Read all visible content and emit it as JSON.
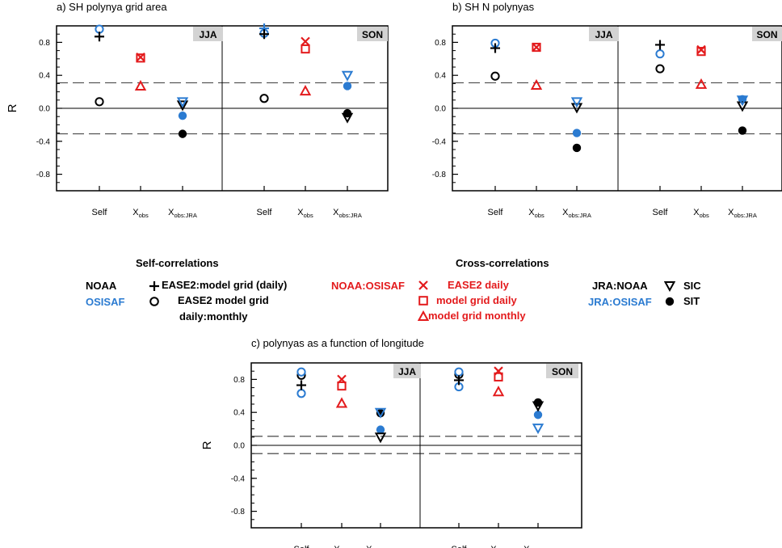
{
  "colors": {
    "black": "#000000",
    "blue": "#2b7bd1",
    "red": "#e31a1c",
    "season_box": "#d3d3d3"
  },
  "y_axis_label": "R",
  "x_tick_labels": [
    {
      "main": "Self",
      "sub": ""
    },
    {
      "main": "X",
      "sub": "obs"
    },
    {
      "main": "X",
      "sub": "obs:JRA"
    }
  ],
  "legend": {
    "self_header": "Self-correlations",
    "cross_header": "Cross-correlations",
    "noaa": "NOAA",
    "osisaf": "OSISAF",
    "ease2_daily_model": "EASE2:model grid (daily)",
    "ease2_monthly_line1": "EASE2  model grid",
    "ease2_monthly_line2": "daily:monthly",
    "noaa_osisaf": "NOAA:OSISAF",
    "ease2_daily": "EASE2 daily",
    "model_grid_daily": "model grid daily",
    "model_grid_monthly": "model grid monthly",
    "jra_noaa": "JRA:NOAA",
    "jra_osisaf": "JRA:OSISAF",
    "sic": "SIC",
    "sit": "SIT"
  },
  "chart_data": [
    {
      "type": "scatter",
      "title": "a) SH polynya grid area",
      "ylabel": "R",
      "ylim": [
        -1.0,
        1.0
      ],
      "yticks": [
        "0.8",
        "0.4",
        "0.0",
        "-0.4",
        "-0.8"
      ],
      "significance_lines": [
        0.31,
        -0.31
      ],
      "seasons": [
        {
          "label": "JJA",
          "points": {
            "self_ease2_noaa": 0.87,
            "self_ease2_osisaf": 0.96,
            "self_monthly_noaa": 0.08,
            "cross_ease2_daily": 0.62,
            "cross_model_daily": 0.61,
            "cross_model_monthly": 0.27,
            "sic_noaa": 0.04,
            "sic_osisaf": 0.08,
            "sit_noaa": -0.31,
            "sit_osisaf": -0.09
          }
        },
        {
          "label": "SON",
          "points": {
            "self_ease2_noaa": 0.9,
            "self_ease2_osisaf": 0.91,
            "self_ease2_osisaf_plus": 0.97,
            "self_monthly_noaa": 0.12,
            "cross_ease2_daily": 0.81,
            "cross_model_daily": 0.72,
            "cross_model_monthly": 0.21,
            "sic_noaa": -0.11,
            "sic_osisaf": 0.4,
            "sit_noaa": -0.06,
            "sit_osisaf": 0.27
          }
        }
      ]
    },
    {
      "type": "scatter",
      "title": "b) SH N polynyas",
      "ylabel": "",
      "ylim": [
        -1.0,
        1.0
      ],
      "yticks": [
        "0.8",
        "0.4",
        "0.0",
        "-0.4",
        "-0.8"
      ],
      "significance_lines": [
        0.31,
        -0.31
      ],
      "seasons": [
        {
          "label": "JJA",
          "points": {
            "self_ease2_noaa": 0.73,
            "self_ease2_osisaf": 0.79,
            "self_monthly_noaa": 0.39,
            "cross_ease2_daily": 0.74,
            "cross_model_daily": 0.74,
            "cross_model_monthly": 0.28,
            "sic_noaa": 0.01,
            "sic_osisaf": 0.08,
            "sit_noaa": -0.48,
            "sit_osisaf": -0.3
          }
        },
        {
          "label": "SON",
          "points": {
            "self_ease2_noaa": 0.77,
            "self_ease2_osisaf": 0.66,
            "self_monthly_noaa": 0.48,
            "cross_ease2_daily": 0.71,
            "cross_model_daily": 0.69,
            "cross_model_monthly": 0.29,
            "sic_noaa": 0.03,
            "sic_osisaf": 0.1,
            "sit_noaa": -0.27,
            "sit_osisaf": 0.11
          }
        }
      ]
    },
    {
      "type": "scatter",
      "title": "c) polynyas as a function of longitude",
      "ylabel": "R",
      "ylim": [
        -1.0,
        1.0
      ],
      "yticks": [
        "0.8",
        "0.4",
        "0.0",
        "-0.4",
        "-0.8"
      ],
      "significance_lines": [
        0.11,
        -0.1
      ],
      "seasons": [
        {
          "label": "JJA",
          "points": {
            "self_ease2_noaa": 0.73,
            "self_ease2_osisaf": 0.63,
            "self_monthly_noaa": 0.85,
            "self_monthly_osisaf": 0.89,
            "cross_ease2_daily": 0.8,
            "cross_model_daily": 0.72,
            "cross_model_monthly": 0.51,
            "sic_noaa": 0.1,
            "sic_osisaf": 0.4,
            "sit_noaa": 0.39,
            "sit_osisaf": 0.19
          }
        },
        {
          "label": "SON",
          "points": {
            "self_ease2_noaa": 0.79,
            "self_ease2_osisaf": 0.71,
            "self_monthly_noaa": 0.86,
            "self_monthly_osisaf": 0.89,
            "cross_ease2_daily": 0.9,
            "cross_model_daily": 0.83,
            "cross_model_monthly": 0.65,
            "sic_noaa": 0.48,
            "sic_osisaf": 0.21,
            "sit_noaa": 0.52,
            "sit_osisaf": 0.37
          }
        }
      ]
    }
  ]
}
